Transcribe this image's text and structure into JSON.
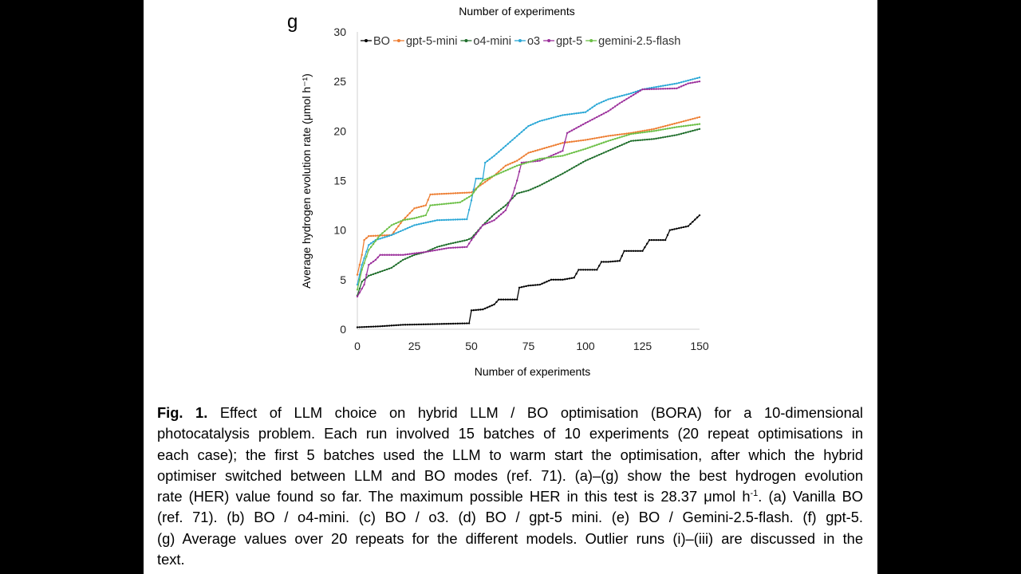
{
  "top_label": "Number of experiments",
  "panel_letter": "g",
  "chart_data": {
    "type": "line",
    "title": "",
    "xlabel": "Number of experiments",
    "ylabel": "Average hydrogen evolution rate (μmol h⁻¹)",
    "xlim": [
      0,
      150
    ],
    "ylim": [
      0,
      30
    ],
    "xticks": [
      0,
      25,
      50,
      75,
      100,
      125,
      150
    ],
    "yticks": [
      0,
      5,
      10,
      15,
      20,
      25,
      30
    ],
    "grid": false,
    "legend_position": "top",
    "series": [
      {
        "name": "BO",
        "color": "#000000",
        "x": [
          0,
          10,
          20,
          30,
          49,
          50,
          55,
          60,
          62,
          70,
          71,
          75,
          80,
          85,
          90,
          95,
          97,
          105,
          107,
          110,
          115,
          117,
          125,
          128,
          135,
          137,
          145,
          150
        ],
        "y": [
          0.2,
          0.3,
          0.45,
          0.5,
          0.6,
          1.9,
          2.0,
          2.5,
          3.0,
          3.0,
          4.2,
          4.4,
          4.5,
          5.0,
          5.0,
          5.2,
          6.0,
          6.0,
          6.8,
          6.8,
          6.9,
          7.9,
          7.9,
          9.0,
          9.0,
          10.0,
          10.4,
          11.5
        ]
      },
      {
        "name": "gpt-5-mini",
        "color": "#ED7D31",
        "x": [
          0,
          2,
          3,
          5,
          15,
          20,
          25,
          30,
          32,
          50,
          52,
          60,
          65,
          70,
          75,
          90,
          100,
          110,
          120,
          130,
          140,
          150
        ],
        "y": [
          5.5,
          7.5,
          9.0,
          9.4,
          9.5,
          11.0,
          12.2,
          12.5,
          13.6,
          13.8,
          14.2,
          15.5,
          16.5,
          17.0,
          17.8,
          18.8,
          19.1,
          19.5,
          19.8,
          20.2,
          20.8,
          21.4
        ]
      },
      {
        "name": "o4-mini",
        "color": "#1F6E2B",
        "x": [
          0,
          2,
          5,
          15,
          20,
          25,
          30,
          35,
          40,
          48,
          50,
          55,
          60,
          65,
          70,
          75,
          80,
          90,
          100,
          110,
          120,
          130,
          140,
          150
        ],
        "y": [
          3.4,
          4.8,
          5.4,
          6.2,
          7.0,
          7.5,
          7.8,
          8.3,
          8.6,
          9.0,
          9.2,
          10.5,
          11.6,
          12.5,
          13.7,
          14.0,
          14.5,
          15.7,
          17.0,
          18.0,
          19.0,
          19.2,
          19.6,
          20.2
        ]
      },
      {
        "name": "o3",
        "color": "#2AA7D6",
        "x": [
          0,
          2,
          5,
          8,
          15,
          20,
          25,
          35,
          48,
          50,
          52,
          55,
          56,
          60,
          65,
          70,
          75,
          80,
          90,
          100,
          105,
          110,
          120,
          125,
          140,
          150
        ],
        "y": [
          4.5,
          6.5,
          8.5,
          9.0,
          9.5,
          10.0,
          10.5,
          11.0,
          11.1,
          13.0,
          15.2,
          15.2,
          16.8,
          17.5,
          18.5,
          19.5,
          20.5,
          21.0,
          21.6,
          21.9,
          22.7,
          23.2,
          23.8,
          24.2,
          24.8,
          25.4
        ]
      },
      {
        "name": "gpt-5",
        "color": "#9B2F9B",
        "x": [
          0,
          3,
          5,
          8,
          10,
          20,
          30,
          40,
          48,
          50,
          55,
          60,
          65,
          68,
          70,
          72,
          80,
          90,
          92,
          100,
          110,
          115,
          125,
          140,
          145,
          150
        ],
        "y": [
          3.3,
          4.5,
          6.5,
          7.0,
          7.5,
          7.5,
          7.8,
          8.2,
          8.3,
          9.0,
          10.5,
          11.0,
          12.0,
          13.5,
          15.0,
          16.8,
          17.0,
          18.0,
          19.8,
          20.8,
          22.0,
          22.8,
          24.2,
          24.3,
          24.8,
          25.0
        ]
      },
      {
        "name": "gemini-2.5-flash",
        "color": "#6BBF45",
        "x": [
          0,
          2,
          5,
          10,
          15,
          20,
          25,
          30,
          32,
          45,
          50,
          55,
          60,
          70,
          80,
          90,
          100,
          110,
          120,
          130,
          140,
          150
        ],
        "y": [
          4.0,
          6.0,
          8.0,
          9.5,
          10.5,
          11.0,
          11.2,
          11.5,
          12.5,
          12.8,
          13.5,
          15.0,
          15.5,
          16.5,
          17.2,
          17.5,
          18.2,
          19.0,
          19.7,
          20.0,
          20.4,
          20.7
        ]
      }
    ]
  },
  "caption": {
    "fig_label": "Fig. 1.",
    "lines": [
      "Effect of LLM choice on hybrid LLM / BO optimisation (BORA) for a 10-dimensional",
      "photocatalysis problem. Each run involved 15 batches of 10 experiments (20 repeat optimisations in",
      "each case); the first 5 batches used the LLM to warm start the optimisation, after which the hybrid",
      "optimiser switched between LLM and BO modes (ref. 71). (a)–(g) show the best hydrogen evolution",
      "rate (HER) value found so far. The maximum possible HER in this test is 28.37 μmol h",
      "-1",
      ". (a) Vanilla BO",
      "(ref. 71). (b) BO / o4-mini. (c) BO / o3. (d) BO / gpt-5 mini. (e) BO / Gemini-2.5-flash. (f) gpt-5.",
      "(g) Average values over 20 repeats for the different models. Outlier runs (i)–(iii) are discussed in the",
      "text."
    ]
  }
}
